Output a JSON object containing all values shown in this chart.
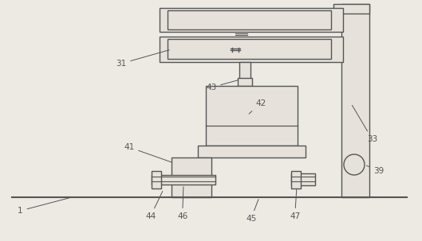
{
  "bg_color": "#ede9e3",
  "line_color": "#555555",
  "fill_color": "#e6e2db",
  "lw": 1.0,
  "fig_w": 5.29,
  "fig_h": 3.03,
  "dpi": 100
}
